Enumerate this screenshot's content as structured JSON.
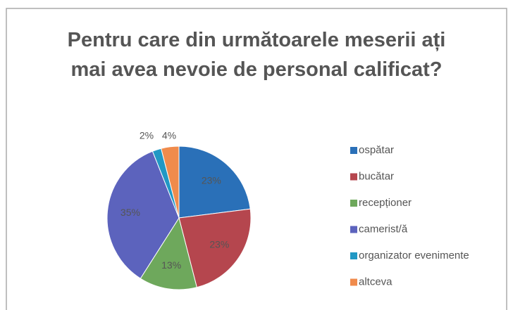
{
  "chart_data": {
    "type": "pie",
    "title": "Pentru care din următoarele meserii ați mai avea nevoie de personal calificat?",
    "categories": [
      "ospătar",
      "bucătar",
      "recepționer",
      "camerist/ă",
      "organizator evenimente",
      "altceva"
    ],
    "values": [
      23,
      23,
      13,
      35,
      2,
      4
    ],
    "value_labels": [
      "23%",
      "23%",
      "13%",
      "35%",
      "2%",
      "4%"
    ],
    "colors": [
      "#2a70b8",
      "#b5464e",
      "#6ea85c",
      "#5c63bd",
      "#2198c4",
      "#f08b4c"
    ],
    "legend": "right"
  }
}
